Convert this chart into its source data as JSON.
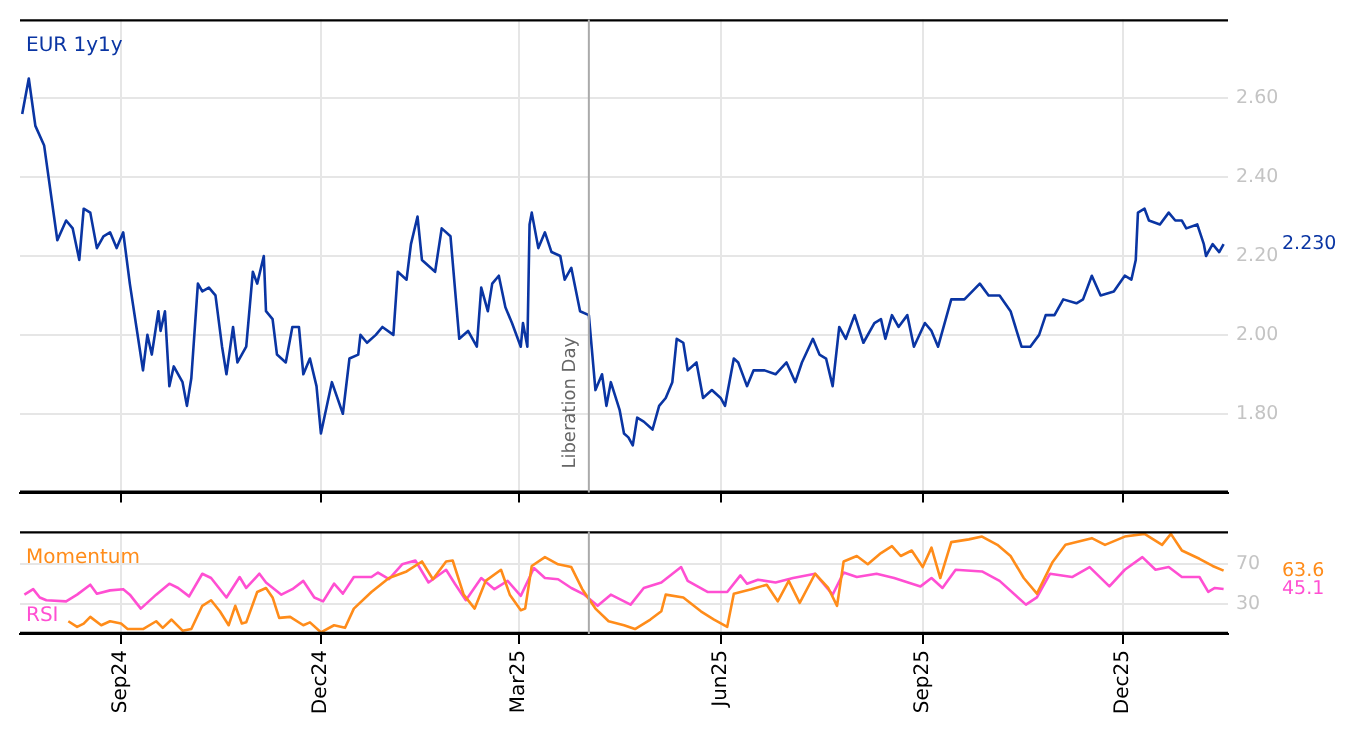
{
  "chart_data": [
    {
      "type": "line",
      "marker": "none",
      "legend": "top left",
      "grid": true,
      "tick_labels": "y",
      "xlim": [
        "2024-07-17",
        "2026-01-18"
      ],
      "xticks": [
        {
          "value": "2024-09-01",
          "label": null
        },
        {
          "value": "2024-12-01",
          "label": null
        },
        {
          "value": "2025-03-01",
          "label": null
        },
        {
          "value": "2025-06-01",
          "label": null
        },
        {
          "value": "2025-09-01",
          "label": null
        },
        {
          "value": "2025-12-01",
          "label": null
        }
      ],
      "ylim": [
        1.6,
        2.8
      ],
      "yticks": [
        {
          "value": 1.8,
          "label": "1.80"
        },
        {
          "value": 2.0,
          "label": "2.00"
        },
        {
          "value": 2.2,
          "label": "2.20"
        },
        {
          "value": 2.4,
          "label": "2.40"
        },
        {
          "value": 2.6,
          "label": "2.60"
        }
      ],
      "ref_lines": [
        {
          "axis": "x",
          "value": "2025-04-02",
          "label": "Liberation Day",
          "color": "#aaaaaa"
        }
      ],
      "annotations": [
        "2.230"
      ],
      "series": [
        {
          "name": "EUR 1y1y",
          "color": "#0a35a3",
          "x": [
            "2024-07-18",
            "2024-07-21",
            "2024-07-24",
            "2024-07-28",
            "2024-07-30",
            "2024-08-03",
            "2024-08-07",
            "2024-08-10",
            "2024-08-13",
            "2024-08-15",
            "2024-08-18",
            "2024-08-21",
            "2024-08-24",
            "2024-08-27",
            "2024-08-30",
            "2024-09-02",
            "2024-09-05",
            "2024-09-08",
            "2024-09-11",
            "2024-09-13",
            "2024-09-15",
            "2024-09-18",
            "2024-09-19",
            "2024-09-21",
            "2024-09-23",
            "2024-09-25",
            "2024-09-29",
            "2024-10-01",
            "2024-10-03",
            "2024-10-06",
            "2024-10-08",
            "2024-10-11",
            "2024-10-14",
            "2024-10-17",
            "2024-10-19",
            "2024-10-22",
            "2024-10-24",
            "2024-10-28",
            "2024-10-31",
            "2024-11-02",
            "2024-11-05",
            "2024-11-06",
            "2024-11-09",
            "2024-11-11",
            "2024-11-15",
            "2024-11-18",
            "2024-11-21",
            "2024-11-23",
            "2024-11-26",
            "2024-11-29",
            "2024-12-01",
            "2024-12-06",
            "2024-12-11",
            "2024-12-14",
            "2024-12-18",
            "2024-12-19",
            "2024-12-22",
            "2024-12-26",
            "2024-12-29",
            "2025-01-03",
            "2025-01-05",
            "2025-01-09",
            "2025-01-11",
            "2025-01-14",
            "2025-01-16",
            "2025-01-22",
            "2025-01-25",
            "2025-01-29",
            "2025-02-02",
            "2025-02-06",
            "2025-02-10",
            "2025-02-12",
            "2025-02-15",
            "2025-02-17",
            "2025-02-20",
            "2025-02-23",
            "2025-02-26",
            "2025-03-02",
            "2025-03-03",
            "2025-03-05",
            "2025-03-06",
            "2025-03-07",
            "2025-03-10",
            "2025-03-13",
            "2025-03-16",
            "2025-03-20",
            "2025-03-22",
            "2025-03-25",
            "2025-03-29",
            "2025-04-02",
            "2025-04-05",
            "2025-04-08",
            "2025-04-10",
            "2025-04-12",
            "2025-04-16",
            "2025-04-18",
            "2025-04-20",
            "2025-04-22",
            "2025-04-24",
            "2025-04-27",
            "2025-05-01",
            "2025-05-04",
            "2025-05-07",
            "2025-05-10",
            "2025-05-12",
            "2025-05-15",
            "2025-05-17",
            "2025-05-21",
            "2025-05-24",
            "2025-05-28",
            "2025-06-01",
            "2025-06-03",
            "2025-06-07",
            "2025-06-09",
            "2025-06-13",
            "2025-06-16",
            "2025-06-21",
            "2025-06-26",
            "2025-07-01",
            "2025-07-05",
            "2025-07-08",
            "2025-07-13",
            "2025-07-16",
            "2025-07-19",
            "2025-07-22",
            "2025-07-25",
            "2025-07-28",
            "2025-08-01",
            "2025-08-05",
            "2025-08-10",
            "2025-08-13",
            "2025-08-15",
            "2025-08-18",
            "2025-08-21",
            "2025-08-25",
            "2025-08-28",
            "2025-09-02",
            "2025-09-05",
            "2025-09-08",
            "2025-09-14",
            "2025-09-20",
            "2025-09-27",
            "2025-10-01",
            "2025-10-06",
            "2025-10-11",
            "2025-10-16",
            "2025-10-20",
            "2025-10-24",
            "2025-10-27",
            "2025-10-31",
            "2025-11-04",
            "2025-11-10",
            "2025-11-13",
            "2025-11-17",
            "2025-11-21",
            "2025-11-27",
            "2025-12-02",
            "2025-12-05",
            "2025-12-07",
            "2025-12-08",
            "2025-12-11",
            "2025-12-13",
            "2025-12-18",
            "2025-12-22",
            "2025-12-25",
            "2025-12-28",
            "2025-12-30",
            "2026-01-04",
            "2026-01-07",
            "2026-01-08",
            "2026-01-11",
            "2026-01-14",
            "2026-01-16"
          ],
          "values": [
            2.56,
            2.65,
            2.53,
            2.48,
            2.4,
            2.24,
            2.29,
            2.27,
            2.19,
            2.32,
            2.31,
            2.22,
            2.25,
            2.26,
            2.22,
            2.26,
            2.13,
            2.02,
            1.91,
            2.0,
            1.95,
            2.06,
            2.01,
            2.06,
            1.87,
            1.92,
            1.88,
            1.82,
            1.89,
            2.13,
            2.11,
            2.12,
            2.1,
            1.97,
            1.9,
            2.02,
            1.93,
            1.97,
            2.16,
            2.13,
            2.2,
            2.06,
            2.04,
            1.95,
            1.93,
            2.02,
            2.02,
            1.9,
            1.94,
            1.87,
            1.75,
            1.88,
            1.8,
            1.94,
            1.95,
            2.0,
            1.98,
            2.0,
            2.02,
            2.0,
            2.16,
            2.14,
            2.23,
            2.3,
            2.19,
            2.16,
            2.27,
            2.25,
            1.99,
            2.01,
            1.97,
            2.12,
            2.06,
            2.13,
            2.15,
            2.07,
            2.03,
            1.97,
            2.03,
            1.97,
            2.28,
            2.31,
            2.22,
            2.26,
            2.21,
            2.2,
            2.14,
            2.17,
            2.06,
            2.05,
            1.86,
            1.9,
            1.82,
            1.88,
            1.81,
            1.75,
            1.74,
            1.72,
            1.79,
            1.78,
            1.76,
            1.82,
            1.84,
            1.88,
            1.99,
            1.98,
            1.91,
            1.93,
            1.84,
            1.86,
            1.84,
            1.82,
            1.94,
            1.93,
            1.87,
            1.91,
            1.91,
            1.9,
            1.93,
            1.88,
            1.93,
            1.99,
            1.95,
            1.94,
            1.87,
            2.02,
            1.99,
            2.05,
            1.98,
            2.03,
            2.04,
            1.99,
            2.05,
            2.02,
            2.05,
            1.97,
            2.03,
            2.01,
            1.97,
            2.09,
            2.09,
            2.13,
            2.1,
            2.1,
            2.06,
            1.97,
            1.97,
            2.0,
            2.05,
            2.05,
            2.09,
            2.08,
            2.09,
            2.15,
            2.1,
            2.11,
            2.15,
            2.14,
            2.19,
            2.31,
            2.32,
            2.29,
            2.28,
            2.31,
            2.29,
            2.29,
            2.27,
            2.28,
            2.23,
            2.2,
            2.23,
            2.21,
            2.23
          ]
        }
      ]
    },
    {
      "type": "line",
      "marker": "none",
      "legend": "left",
      "grid": true,
      "xlim": [
        "2024-07-17",
        "2026-01-18"
      ],
      "xticks": [
        {
          "value": "2024-09-01",
          "label": "Sep24"
        },
        {
          "value": "2024-12-01",
          "label": "Dec24"
        },
        {
          "value": "2025-03-01",
          "label": "Mar25"
        },
        {
          "value": "2025-06-01",
          "label": "Jun25"
        },
        {
          "value": "2025-09-01",
          "label": "Sep25"
        },
        {
          "value": "2025-12-01",
          "label": "Dec25"
        }
      ],
      "ylim": [
        0,
        103
      ],
      "yticks": [
        30,
        70
      ],
      "ref_lines": [
        {
          "axis": "x",
          "value": "2025-04-02",
          "color": "#aaaaaa"
        }
      ],
      "annotations": [
        "63.6",
        "45.1"
      ],
      "series": [
        {
          "name": "Momentum",
          "color": "#ff8c1a",
          "x": [
            "2024-08-08",
            "2024-08-12",
            "2024-08-15",
            "2024-08-18",
            "2024-08-23",
            "2024-08-27",
            "2024-09-01",
            "2024-09-04",
            "2024-09-11",
            "2024-09-17",
            "2024-09-20",
            "2024-09-24",
            "2024-09-29",
            "2024-10-03",
            "2024-10-08",
            "2024-10-12",
            "2024-10-16",
            "2024-10-20",
            "2024-10-23",
            "2024-10-26",
            "2024-10-28",
            "2024-11-02",
            "2024-11-06",
            "2024-11-09",
            "2024-11-12",
            "2024-11-17",
            "2024-11-23",
            "2024-11-26",
            "2024-12-01",
            "2024-12-07",
            "2024-12-12",
            "2024-12-16",
            "2024-12-24",
            "2025-01-01",
            "2025-01-09",
            "2025-01-16",
            "2025-01-21",
            "2025-01-27",
            "2025-01-30",
            "2025-02-04",
            "2025-02-09",
            "2025-02-14",
            "2025-02-21",
            "2025-02-25",
            "2025-03-02",
            "2025-03-04",
            "2025-03-07",
            "2025-03-13",
            "2025-03-19",
            "2025-03-25",
            "2025-03-30",
            "2025-04-05",
            "2025-04-11",
            "2025-04-18",
            "2025-04-23",
            "2025-04-30",
            "2025-05-05",
            "2025-05-07",
            "2025-05-15",
            "2025-05-23",
            "2025-05-29",
            "2025-06-04",
            "2025-06-07",
            "2025-06-15",
            "2025-06-22",
            "2025-06-27",
            "2025-07-02",
            "2025-07-07",
            "2025-07-14",
            "2025-07-20",
            "2025-07-24",
            "2025-07-27",
            "2025-08-02",
            "2025-08-07",
            "2025-08-13",
            "2025-08-18",
            "2025-08-22",
            "2025-08-27",
            "2025-09-01",
            "2025-09-05",
            "2025-09-09",
            "2025-09-14",
            "2025-09-22",
            "2025-09-28",
            "2025-10-05",
            "2025-10-11",
            "2025-10-17",
            "2025-10-23",
            "2025-10-30",
            "2025-11-05",
            "2025-11-17",
            "2025-11-23",
            "2025-12-02",
            "2025-12-11",
            "2025-12-19",
            "2025-12-23",
            "2025-12-28",
            "2026-01-05",
            "2026-01-11",
            "2026-01-16"
          ],
          "values": [
            12.8,
            7.2,
            10.5,
            17.2,
            8.8,
            12.8,
            10.5,
            5,
            5,
            12.8,
            6.2,
            14.5,
            3.3,
            5,
            28.3,
            33.9,
            22.8,
            8.8,
            28.3,
            10.5,
            11.7,
            42.2,
            46.2,
            36.7,
            16.2,
            17.2,
            8.8,
            11.7,
            1.7,
            8.8,
            6.2,
            25.5,
            42.2,
            56.2,
            62.8,
            72.8,
            55,
            72.8,
            73.8,
            39.5,
            25.5,
            53.3,
            64.5,
            39.5,
            23.8,
            25.5,
            68.3,
            77.2,
            70,
            67.2,
            45,
            25.5,
            12.8,
            8.8,
            5,
            14.5,
            22.8,
            39.5,
            36.7,
            22.8,
            14.5,
            7.2,
            40.5,
            45,
            49.5,
            32.8,
            53.3,
            31.2,
            60.5,
            46.2,
            28.3,
            72.8,
            78.3,
            70,
            81.2,
            88.3,
            78.3,
            83.8,
            67.2,
            86.7,
            56.2,
            92.2,
            95,
            97.8,
            89.5,
            78.3,
            56.2,
            40.5,
            71.7,
            89.5,
            96.2,
            89.5,
            97.8,
            100.5,
            89.5,
            100.5,
            83.8,
            75.5,
            68.3,
            63.6
          ]
        },
        {
          "name": "RSI",
          "color": "#ff4fd2",
          "x": [
            "2024-07-19",
            "2024-07-23",
            "2024-07-26",
            "2024-07-29",
            "2024-08-07",
            "2024-08-12",
            "2024-08-18",
            "2024-08-21",
            "2024-08-27",
            "2024-09-02",
            "2024-09-05",
            "2024-09-10",
            "2024-09-17",
            "2024-09-23",
            "2024-09-27",
            "2024-10-02",
            "2024-10-08",
            "2024-10-12",
            "2024-10-19",
            "2024-10-25",
            "2024-10-28",
            "2024-11-03",
            "2024-11-06",
            "2024-11-13",
            "2024-11-18",
            "2024-11-23",
            "2024-11-28",
            "2024-12-02",
            "2024-12-07",
            "2024-12-11",
            "2024-12-16",
            "2024-12-24",
            "2024-12-27",
            "2025-01-01",
            "2025-01-07",
            "2025-01-13",
            "2025-01-19",
            "2025-01-27",
            "2025-01-31",
            "2025-02-05",
            "2025-02-12",
            "2025-02-18",
            "2025-02-24",
            "2025-03-02",
            "2025-03-08",
            "2025-03-13",
            "2025-03-19",
            "2025-03-25",
            "2025-03-31",
            "2025-04-06",
            "2025-04-12",
            "2025-04-21",
            "2025-04-27",
            "2025-05-05",
            "2025-05-14",
            "2025-05-17",
            "2025-05-26",
            "2025-06-04",
            "2025-06-10",
            "2025-06-13",
            "2025-06-18",
            "2025-06-26",
            "2025-07-04",
            "2025-07-14",
            "2025-07-22",
            "2025-07-27",
            "2025-08-02",
            "2025-08-11",
            "2025-08-19",
            "2025-08-31",
            "2025-09-05",
            "2025-09-10",
            "2025-09-16",
            "2025-09-28",
            "2025-10-06",
            "2025-10-18",
            "2025-10-23",
            "2025-10-29",
            "2025-11-08",
            "2025-11-16",
            "2025-11-25",
            "2025-12-02",
            "2025-12-10",
            "2025-12-16",
            "2025-12-22",
            "2025-12-28",
            "2026-01-05",
            "2026-01-09",
            "2026-01-12",
            "2026-01-16"
          ],
          "values": [
            39.5,
            45,
            36.7,
            33.9,
            32.8,
            39.5,
            49.5,
            40.5,
            43.8,
            45,
            39.5,
            25.5,
            39.5,
            50.5,
            46.2,
            37.8,
            60.5,
            56.2,
            36.7,
            57.2,
            46.2,
            60.5,
            51.7,
            39.5,
            45,
            53.3,
            36.7,
            32.8,
            50.5,
            40.5,
            57.2,
            57.2,
            61.7,
            55,
            70,
            73.8,
            51.7,
            64.5,
            50.5,
            33.9,
            56.2,
            45,
            53.3,
            38.3,
            66.2,
            56.2,
            55,
            46.2,
            39.5,
            28.3,
            39.5,
            29.5,
            46.2,
            51.7,
            67.2,
            53.3,
            42.2,
            42.2,
            58.8,
            50.5,
            54.5,
            51.7,
            56.2,
            60.5,
            39.5,
            61.7,
            57.2,
            60.5,
            56.2,
            47.8,
            56.2,
            46.2,
            64.5,
            62.8,
            53.3,
            29.5,
            36.7,
            60.5,
            57.2,
            67.2,
            47.8,
            64.5,
            77.2,
            64.5,
            67.2,
            57.2,
            57.2,
            42.2,
            46.2,
            45.1
          ]
        }
      ]
    }
  ]
}
